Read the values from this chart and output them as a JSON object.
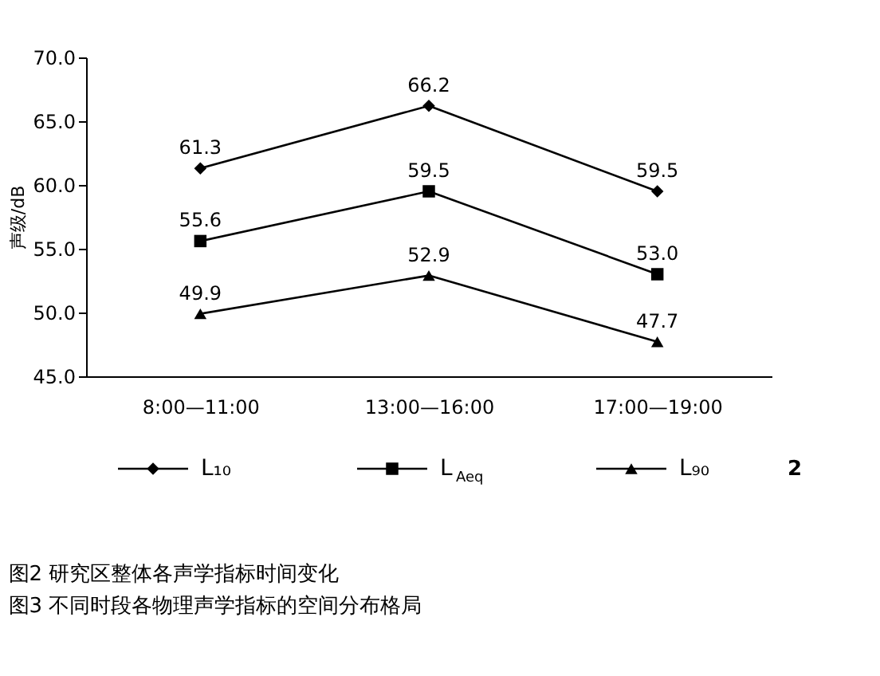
{
  "chart_data": {
    "type": "line",
    "ylabel": "声级/dB",
    "categories": [
      "8:00—11:00",
      "13:00—16:00",
      "17:00—19:00"
    ],
    "series": [
      {
        "name": "L₁₀",
        "color": "#000000",
        "marker": "diamond",
        "values": [
          61.3,
          66.2,
          59.5
        ],
        "value_labels": [
          "61.3",
          "66.2",
          "59.5"
        ]
      },
      {
        "name": "L$_{Aeq}$",
        "color": "#000000",
        "marker": "square",
        "values": [
          55.6,
          59.5,
          53.0
        ],
        "value_labels": [
          "55.6",
          "59.5",
          "53.0"
        ]
      },
      {
        "name": "L₉₀",
        "color": "#000000",
        "marker": "triangle",
        "values": [
          49.9,
          52.9,
          47.7
        ],
        "value_labels": [
          "49.9",
          "52.9",
          "47.7"
        ]
      }
    ],
    "ylim": [
      45,
      70
    ],
    "yticks": [
      {
        "value": 45,
        "label": "45.0"
      },
      {
        "value": 50,
        "label": "50.0"
      },
      {
        "value": 55,
        "label": "55.0"
      },
      {
        "value": 60,
        "label": "60.0"
      },
      {
        "value": 65,
        "label": "65.0"
      },
      {
        "value": 70,
        "label": "70.0"
      }
    ],
    "data_labels": true,
    "grid": false,
    "legend": "bottom",
    "line_style": "solid",
    "annotations": [
      "2",
      "图2  研究区整体各声学指标时间变化",
      "图3  不同时段各物理声学指标的空间分布格局"
    ]
  }
}
